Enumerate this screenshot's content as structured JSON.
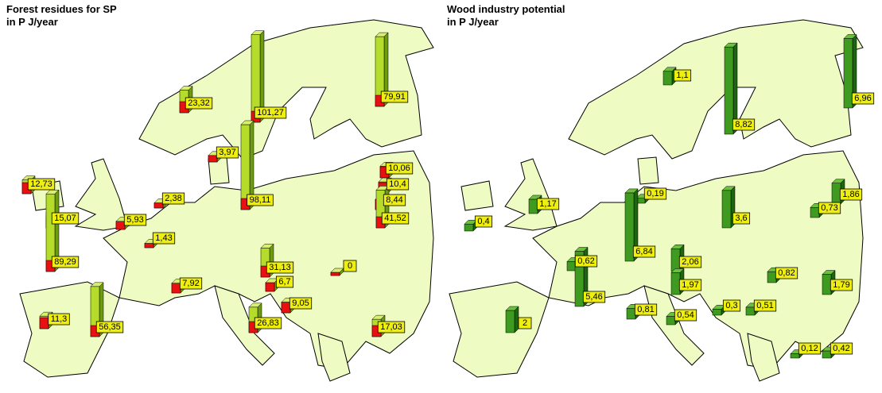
{
  "maps": [
    {
      "title": [
        "Forest residues for SP",
        "in P J/year"
      ],
      "labels": [
        {
          "value": 12.73,
          "label": "12,73"
        },
        {
          "value": 15.07,
          "label": "15,07"
        },
        {
          "value": 5.93,
          "label": "5,93"
        },
        {
          "value": 2.38,
          "label": "2,38"
        },
        {
          "value": 1.43,
          "label": "1,43"
        },
        {
          "value": 89.29,
          "label": "89,29"
        },
        {
          "value": 7.92,
          "label": "7,92"
        },
        {
          "value": 11.3,
          "label": "11,3"
        },
        {
          "value": 56.35,
          "label": "56,35"
        },
        {
          "value": 23.32,
          "label": "23,32"
        },
        {
          "value": 101.27,
          "label": "101,27"
        },
        {
          "value": 79.91,
          "label": "79,91"
        },
        {
          "value": 3.97,
          "label": "3,97"
        },
        {
          "value": 10.06,
          "label": "10,06"
        },
        {
          "value": 10.4,
          "label": "10,4"
        },
        {
          "value": 8.44,
          "label": "8,44"
        },
        {
          "value": 98.11,
          "label": "98,11"
        },
        {
          "value": 41.52,
          "label": "41,52"
        },
        {
          "value": 31.13,
          "label": "31,13"
        },
        {
          "value": 6.7,
          "label": "6,7"
        },
        {
          "value": 9.05,
          "label": "9,05"
        },
        {
          "value": 26.83,
          "label": "26,83"
        },
        {
          "value": 0,
          "label": "0"
        },
        {
          "value": 17.03,
          "label": "17,03"
        }
      ]
    },
    {
      "title": [
        "Wood industry potential",
        "in P J/year"
      ],
      "labels": [
        {
          "value": 1.1,
          "label": "1,1"
        },
        {
          "value": 8.82,
          "label": "8,82"
        },
        {
          "value": 6.96,
          "label": "6,96"
        },
        {
          "value": 1.17,
          "label": "1,17"
        },
        {
          "value": 0.19,
          "label": "0,19"
        },
        {
          "value": 1.86,
          "label": "1,86"
        },
        {
          "value": 0.73,
          "label": "0,73"
        },
        {
          "value": 0.4,
          "label": "0,4"
        },
        {
          "value": 3.6,
          "label": "3,6"
        },
        {
          "value": 0.62,
          "label": "0,62"
        },
        {
          "value": 6.84,
          "label": "6,84"
        },
        {
          "value": 2.06,
          "label": "2,06"
        },
        {
          "value": 0.82,
          "label": "0,82"
        },
        {
          "value": 5.46,
          "label": "5,46"
        },
        {
          "value": 1.97,
          "label": "1,97"
        },
        {
          "value": 1.79,
          "label": "1,79"
        },
        {
          "value": 0.81,
          "label": "0,81"
        },
        {
          "value": 0.54,
          "label": "0,54"
        },
        {
          "value": 0.3,
          "label": "0,3"
        },
        {
          "value": 0.51,
          "label": "0,51"
        },
        {
          "value": 2,
          "label": "2"
        },
        {
          "value": 0.12,
          "label": "0,12"
        },
        {
          "value": 0.42,
          "label": "0,42"
        }
      ]
    }
  ]
}
